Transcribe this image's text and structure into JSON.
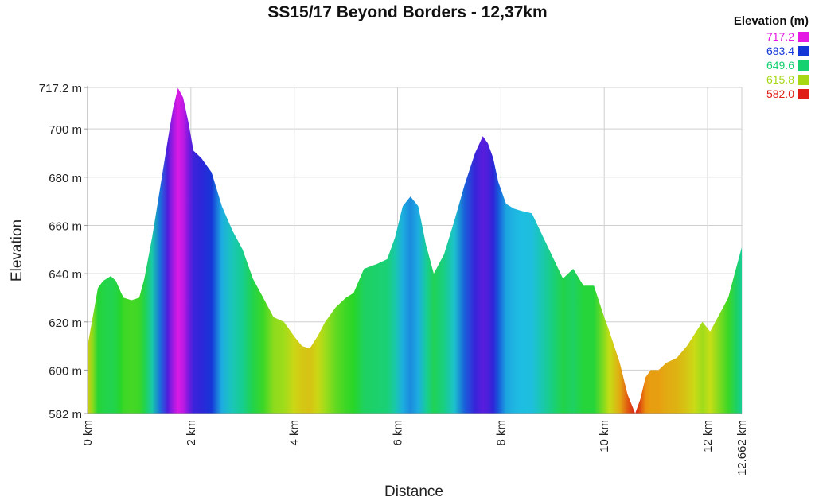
{
  "chart_data": {
    "type": "area",
    "title": "SS15/17 Beyond Borders - 12,37km",
    "xlabel": "Distance",
    "ylabel": "Elevation",
    "x_unit": "km",
    "y_unit": "m",
    "xlim": [
      0,
      12.662
    ],
    "ylim": [
      582,
      717.2
    ],
    "x_ticks": [
      0,
      2,
      4,
      6,
      8,
      10,
      12,
      12.662
    ],
    "x_tick_labels": [
      "0 km",
      "2 km",
      "4 km",
      "6 km",
      "8 km",
      "10 km",
      "12 km",
      "12.662 km"
    ],
    "y_ticks": [
      582,
      600,
      620,
      640,
      660,
      680,
      700,
      717.2
    ],
    "y_tick_labels": [
      "582 m",
      "600 m",
      "620 m",
      "640 m",
      "660 m",
      "680 m",
      "700 m",
      "717.2 m"
    ],
    "grid": true,
    "legend": {
      "title": "Elevation (m)",
      "placement": "top-right",
      "entries": [
        {
          "label": "717.2",
          "color": "#e41ae4"
        },
        {
          "label": "683.4",
          "color": "#1537d8"
        },
        {
          "label": "649.6",
          "color": "#16d16f"
        },
        {
          "label": "615.8",
          "color": "#a6d816"
        },
        {
          "label": "582.0",
          "color": "#e01d16"
        }
      ]
    },
    "x": [
      0,
      0.1,
      0.2,
      0.3,
      0.45,
      0.55,
      0.65,
      0.7,
      0.85,
      1.0,
      1.1,
      1.25,
      1.4,
      1.55,
      1.65,
      1.75,
      1.85,
      1.95,
      2.05,
      2.2,
      2.4,
      2.6,
      2.8,
      3.0,
      3.2,
      3.4,
      3.6,
      3.8,
      4.0,
      4.15,
      4.3,
      4.45,
      4.6,
      4.8,
      5.0,
      5.15,
      5.35,
      5.6,
      5.8,
      5.95,
      6.1,
      6.25,
      6.4,
      6.55,
      6.7,
      6.9,
      7.1,
      7.3,
      7.5,
      7.65,
      7.75,
      7.85,
      7.95,
      8.1,
      8.25,
      8.4,
      8.6,
      8.8,
      9.0,
      9.2,
      9.4,
      9.6,
      9.8,
      10.0,
      10.1,
      10.3,
      10.45,
      10.6,
      10.7,
      10.8,
      10.9,
      11.05,
      11.2,
      11.4,
      11.6,
      11.75,
      11.9,
      12.05,
      12.2,
      12.4,
      12.55,
      12.662
    ],
    "y": [
      610,
      622,
      634,
      637,
      639,
      637,
      632,
      630,
      629,
      630,
      638,
      655,
      675,
      695,
      708,
      717,
      713,
      703,
      691,
      688,
      682,
      668,
      658,
      650,
      638,
      630,
      622,
      620,
      614,
      610,
      609,
      614,
      620,
      626,
      630,
      632,
      642,
      644,
      646,
      655,
      668,
      672,
      668,
      652,
      640,
      648,
      662,
      677,
      690,
      697,
      694,
      688,
      678,
      669,
      667,
      666,
      665,
      656,
      647,
      638,
      642,
      635,
      635,
      622,
      616,
      603,
      590,
      582,
      588,
      597,
      600,
      600,
      603,
      605,
      610,
      615,
      620,
      616,
      622,
      630,
      642,
      651
    ]
  }
}
